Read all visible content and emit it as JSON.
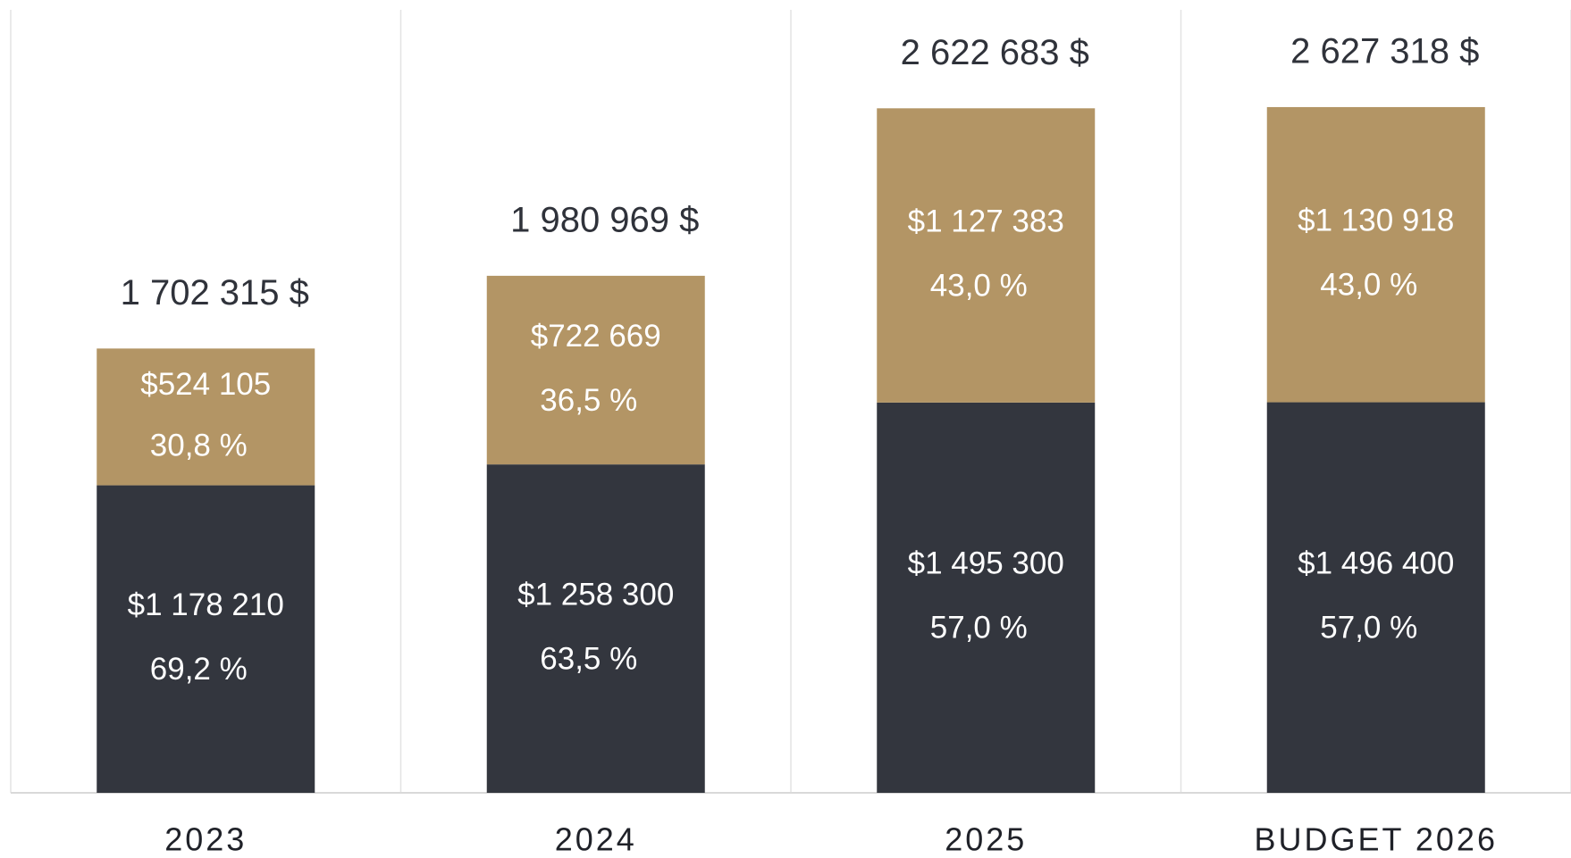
{
  "chart_data": {
    "type": "stacked_bar",
    "categories": [
      "2023",
      "2024",
      "2025",
      "BUDGET 2026"
    ],
    "series": [
      {
        "color": "#33363e",
        "values": [
          1178210,
          1258300,
          1495300,
          1496400
        ],
        "value_labels": [
          "$1 178 210",
          "$1 258 300",
          "$1 495 300",
          "$1 496 400"
        ],
        "shares": [
          69.2,
          63.5,
          57.0,
          57.0
        ],
        "share_labels": [
          "69,2 %",
          "63,5 %",
          "57,0 %",
          "57,0 %"
        ]
      },
      {
        "color": "#b39565",
        "values": [
          524105,
          722669,
          1127383,
          1130918
        ],
        "value_labels": [
          "$524 105",
          "$722 669",
          "$1 127 383",
          "$1 130 918"
        ],
        "shares": [
          30.8,
          36.5,
          43.0,
          43.0
        ],
        "share_labels": [
          "30,8 %",
          "36,5 %",
          "43,0 %",
          "43,0 %"
        ]
      }
    ],
    "totals": [
      1702315,
      1980969,
      2622683,
      2627318
    ],
    "total_labels": [
      "1 702 315 $",
      "1 980 969 $",
      "2 622 683 $",
      "2 627 318 $"
    ],
    "ylim": [
      0,
      3000000
    ]
  }
}
